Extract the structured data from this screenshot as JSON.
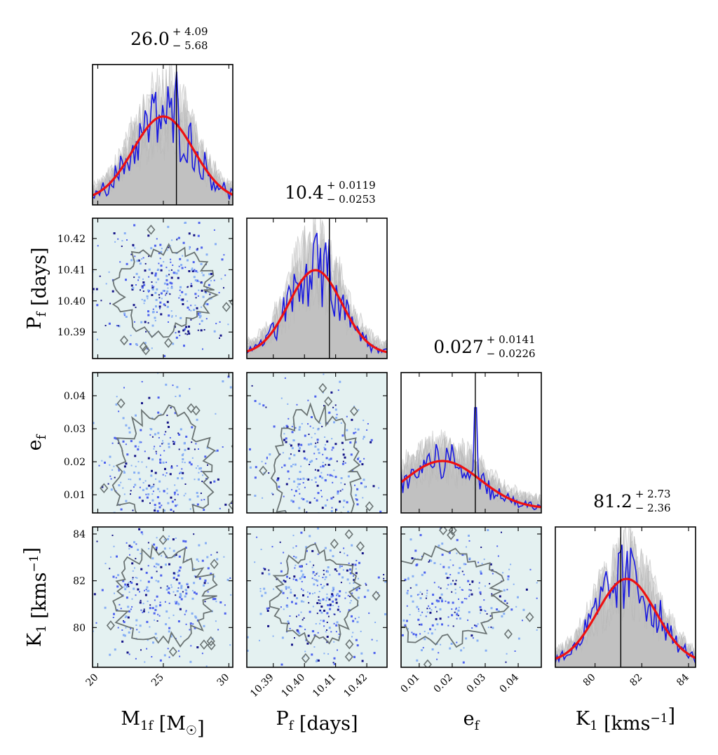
{
  "chart_data": {
    "type": "corner",
    "colors": {
      "background": "#ffffff",
      "panel_fill": "#e4f1f1",
      "hist_gray": "#b8b8b8",
      "hist_line": "#1919e0",
      "fit_curve": "#ee1111",
      "truth_line": "#000000",
      "contour": "#6a7373",
      "dot_dark": "#141488",
      "dot_mid": "#4d62ee",
      "dot_light": "#86aef4"
    },
    "parameters": [
      {
        "key": "M1f",
        "label": "M_{1f} [M_☉]",
        "title": {
          "value": "26.0",
          "plus": "+ 4.09",
          "minus": "− 5.68"
        },
        "range": [
          19.6,
          30.3
        ],
        "ticks": [
          20,
          25,
          30
        ],
        "tick_labels": [
          "20",
          "25",
          "30"
        ],
        "truth": 26.0,
        "fit": {
          "mu": 25.0,
          "sigma": 2.3,
          "amp": 0.6
        },
        "hist_peak": 0.95
      },
      {
        "key": "Pf",
        "label": "P_f [days]",
        "title": {
          "value": "10.4",
          "plus": "+ 0.0119",
          "minus": "− 0.0253"
        },
        "range": [
          10.3815,
          10.4265
        ],
        "ticks": [
          10.39,
          10.4,
          10.41,
          10.42
        ],
        "tick_labels": [
          "10.39",
          "10.40",
          "10.41",
          "10.42"
        ],
        "truth": 10.408,
        "fit": {
          "mu": 10.4035,
          "sigma": 0.0085,
          "amp": 0.6
        },
        "hist_peak": 0.85
      },
      {
        "key": "ef",
        "label": "e_f",
        "title": {
          "value": "0.027",
          "plus": "+ 0.0141",
          "minus": "− 0.0226"
        },
        "range": [
          0.0045,
          0.047
        ],
        "ticks": [
          0.01,
          0.02,
          0.03,
          0.04
        ],
        "tick_labels": [
          "0.01",
          "0.02",
          "0.03",
          "0.04"
        ],
        "truth": 0.027,
        "fit": {
          "mu": 0.017,
          "sigma": 0.0115,
          "amp": 0.34
        },
        "hist_peak": 0.75
      },
      {
        "key": "K1",
        "label": "K_1 [kms^{−1}]",
        "title": {
          "value": "81.2",
          "plus": "+ 2.73",
          "minus": "− 2.36"
        },
        "range": [
          78.3,
          84.3
        ],
        "ticks": [
          80,
          82,
          84
        ],
        "tick_labels": [
          "80",
          "82",
          "84"
        ],
        "truth": 81.1,
        "fit": {
          "mu": 81.35,
          "sigma": 1.25,
          "amp": 0.6
        },
        "hist_peak": 0.82
      }
    ]
  }
}
